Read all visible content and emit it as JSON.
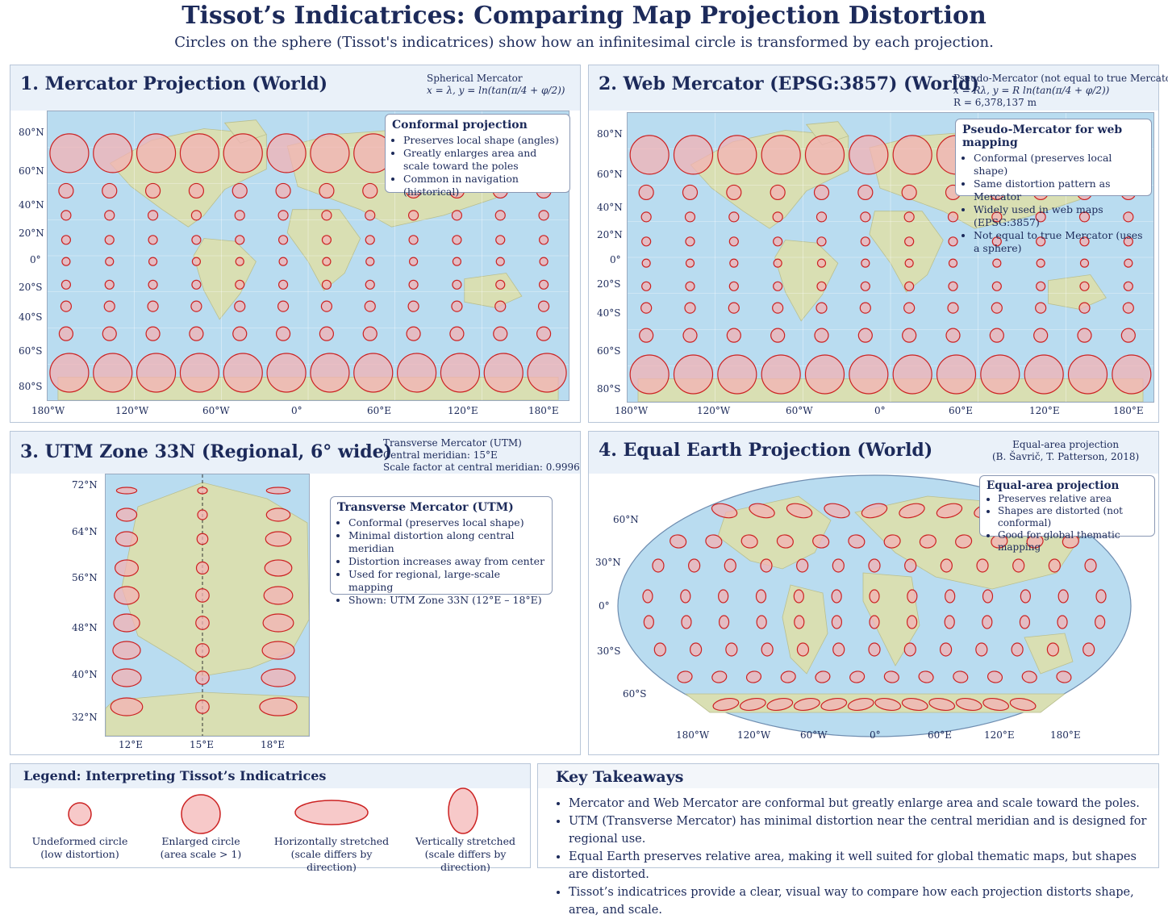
{
  "header": {
    "title": "Tissot’s Indicatrices: Comparing Map Projection Distortion",
    "subtitle": "Circles on the sphere (Tissot's indicatrices) show how an infinitesimal circle is transformed by each projection."
  },
  "panels": {
    "mercator": {
      "title": "1. Mercator Projection (World)",
      "formula": [
        "Spherical Mercator",
        "x = λ,  y = ln(tan(π/4 + φ/2))"
      ],
      "info_title": "Conformal projection",
      "info_items": [
        "Preserves local shape (angles)",
        "Greatly enlarges area and scale toward the poles",
        "Common in navigation (historical)"
      ],
      "lat_labels": [
        "80°N",
        "60°N",
        "40°N",
        "20°N",
        "0°",
        "20°S",
        "40°S",
        "60°S",
        "80°S"
      ],
      "lon_labels": [
        "180°W",
        "120°W",
        "60°W",
        "0°",
        "60°E",
        "120°E",
        "180°E"
      ]
    },
    "webmercator": {
      "title": "2. Web Mercator (EPSG:3857) (World)",
      "formula": [
        "Pseudo-Mercator (not equal to true Mercator)",
        "x = Rλ,   y = R ln(tan(π/4 + φ/2))",
        "R = 6,378,137 m"
      ],
      "info_title": "Pseudo-Mercator for web mapping",
      "info_items": [
        "Conformal (preserves local shape)",
        "Same distortion pattern as Mercator",
        "Widely used in web maps (EPSG:3857)",
        "Not equal to true Mercator (uses a sphere)"
      ],
      "lat_labels": [
        "80°N",
        "60°N",
        "40°N",
        "20°N",
        "0°",
        "20°S",
        "40°S",
        "60°S",
        "80°S"
      ],
      "lon_labels": [
        "180°W",
        "120°W",
        "60°W",
        "0°",
        "60°E",
        "120°E",
        "180°E"
      ]
    },
    "utm": {
      "title": "3. UTM Zone 33N (Regional, 6° wide)",
      "formula": [
        "Transverse Mercator (UTM)",
        "Central meridian: 15°E",
        "Scale factor at central meridian:  0.9996"
      ],
      "info_title": "Transverse Mercator (UTM)",
      "info_items": [
        "Conformal (preserves local shape)",
        "Minimal distortion along central meridian",
        "Distortion increases away from center",
        "Used for regional, large-scale mapping",
        "Shown: UTM Zone 33N (12°E – 18°E)"
      ],
      "lat_labels": [
        "72°N",
        "64°N",
        "56°N",
        "48°N",
        "40°N",
        "32°N"
      ],
      "lon_labels": [
        "12°E",
        "15°E",
        "18°E"
      ]
    },
    "equalearth": {
      "title": "4. Equal Earth Projection (World)",
      "formula": [
        "Equal-area projection",
        "(B. Šavrič, T. Patterson, 2018)"
      ],
      "info_title": "Equal-area projection",
      "info_items": [
        "Preserves relative area",
        "Shapes are distorted (not conformal)",
        "Good for global thematic mapping"
      ],
      "lat_labels": [
        "60°N",
        "30°N",
        "0°",
        "30°S",
        "60°S"
      ],
      "lon_labels": [
        "180°W",
        "120°W",
        "60°W",
        "0°",
        "60°E",
        "120°E",
        "180°E"
      ]
    }
  },
  "legend": {
    "title": "Legend: Interpreting Tissot’s Indicatrices",
    "items": [
      {
        "line1": "Undeformed circle",
        "line2": "(low distortion)"
      },
      {
        "line1": "Enlarged circle",
        "line2": "(area scale > 1)"
      },
      {
        "line1": "Horizontally stretched",
        "line2": "(scale differs by direction)"
      },
      {
        "line1": "Vertically stretched",
        "line2": "(scale differs by direction)"
      }
    ]
  },
  "takeaways": {
    "title": "Key Takeaways",
    "items": [
      "Mercator and Web Mercator are conformal but greatly enlarge area and scale toward the poles.",
      "UTM (Transverse Mercator) has minimal distortion near the central meridian and is designed for regional use.",
      "Equal Earth preserves relative area, making it well suited for global thematic maps, but shapes are distorted.",
      "Tissot’s indicatrices provide a clear, visual way to compare how each projection distorts shape, area, and scale."
    ]
  },
  "colors": {
    "ocean": "#b9dcf0",
    "land": "#d9dfb3",
    "circle_fill": "#f3b1b4",
    "circle_stroke": "#cc2222",
    "title": "#1c2a5a"
  }
}
